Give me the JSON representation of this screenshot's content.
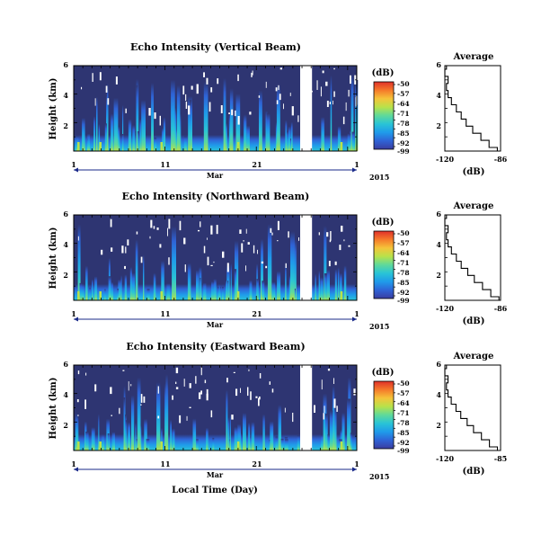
{
  "chart_data": [
    {
      "type": "heatmap",
      "title": "Echo Intensity (Vertical Beam)",
      "ylabel": "Height (km)",
      "xlabel": "",
      "yticks": [
        "6",
        "4",
        "2"
      ],
      "xticks": [
        "1",
        "11",
        "21",
        "1"
      ],
      "month_label": "Mar",
      "year_label": "2015",
      "colorbar_unit": "(dB)",
      "colorbar_ticks": [
        "-50",
        "-57",
        "-64",
        "-71",
        "-78",
        "-85",
        "-92",
        "-99"
      ],
      "gap_day_range": [
        25.8,
        27.1
      ],
      "average_profile": {
        "title": "Average",
        "xlabel": "(dB)",
        "xticks": [
          "-120",
          "-86"
        ],
        "yticks": [
          "6",
          "4",
          "2"
        ],
        "height_km": [
          0.0,
          0.5,
          1.0,
          1.5,
          2.0,
          2.5,
          3.0,
          3.5,
          4.0,
          4.5,
          5.0,
          5.5,
          6.0
        ],
        "db": [
          -88,
          -93,
          -98,
          -103,
          -107,
          -110,
          -113,
          -116,
          -118,
          -119,
          -118,
          -120,
          -119
        ]
      }
    },
    {
      "type": "heatmap",
      "title": "Echo Intensity (Northward Beam)",
      "ylabel": "Height (km)",
      "xlabel": "",
      "yticks": [
        "6",
        "4",
        "2"
      ],
      "xticks": [
        "1",
        "11",
        "21",
        "1"
      ],
      "month_label": "Mar",
      "year_label": "2015",
      "colorbar_unit": "(dB)",
      "colorbar_ticks": [
        "-50",
        "-57",
        "-64",
        "-71",
        "-78",
        "-85",
        "-92",
        "-99"
      ],
      "gap_day_range": [
        25.8,
        27.1
      ],
      "average_profile": {
        "title": "Average",
        "xlabel": "(dB)",
        "xticks": [
          "-120",
          "-86"
        ],
        "yticks": [
          "6",
          "4",
          "2"
        ],
        "height_km": [
          0.0,
          0.5,
          1.0,
          1.5,
          2.0,
          2.5,
          3.0,
          3.5,
          4.0,
          4.5,
          5.0,
          5.5,
          6.0
        ],
        "db": [
          -87,
          -92,
          -97,
          -102,
          -106,
          -110,
          -113,
          -116,
          -118,
          -119,
          -118,
          -120,
          -119
        ]
      }
    },
    {
      "type": "heatmap",
      "title": "Echo Intensity (Eastward Beam)",
      "ylabel": "Height (km)",
      "xlabel": "Local Time (Day)",
      "yticks": [
        "6",
        "4",
        "2"
      ],
      "xticks": [
        "1",
        "11",
        "21",
        "1"
      ],
      "month_label": "Mar",
      "year_label": "2015",
      "colorbar_unit": "(dB)",
      "colorbar_ticks": [
        "-50",
        "-57",
        "-64",
        "-71",
        "-78",
        "-85",
        "-92",
        "-99"
      ],
      "gap_day_range": [
        25.8,
        27.1
      ],
      "average_profile": {
        "title": "Average",
        "xlabel": "(dB)",
        "xticks": [
          "-120",
          "-85"
        ],
        "yticks": [
          "6",
          "4",
          "2"
        ],
        "height_km": [
          0.0,
          0.5,
          1.0,
          1.5,
          2.0,
          2.5,
          3.0,
          3.5,
          4.0,
          4.5,
          5.0,
          5.5,
          6.0
        ],
        "db": [
          -87,
          -92,
          -97,
          -102,
          -106,
          -110,
          -113,
          -116,
          -118,
          -119,
          -118,
          -120,
          -119
        ]
      }
    }
  ],
  "colors": {
    "background_field": "#2e3572",
    "colormap": [
      "#3a3da0",
      "#2f63d6",
      "#1f9bea",
      "#29c4d6",
      "#5fd99a",
      "#b8e24a",
      "#f5c43a",
      "#f57a2a",
      "#e0302a"
    ]
  }
}
